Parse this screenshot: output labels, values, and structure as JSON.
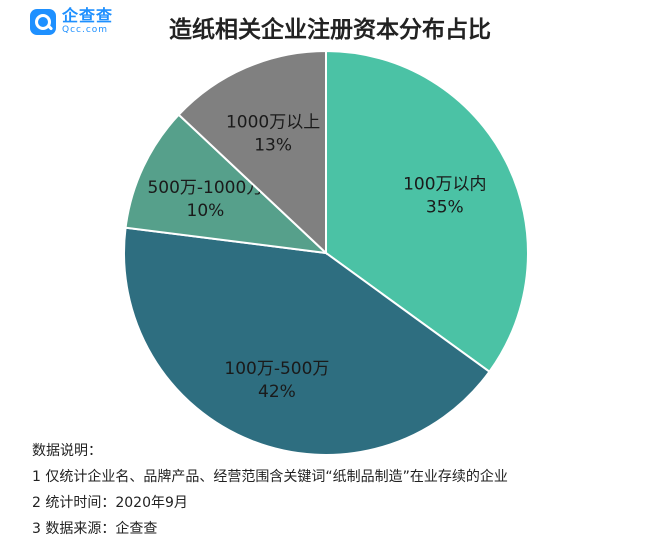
{
  "brand": {
    "name_cn": "企查查",
    "name_en": "Qcc.com"
  },
  "chart_data": {
    "type": "pie",
    "title": "造纸相关企业注册资本分布占比",
    "slices": [
      {
        "label": "100万以内",
        "value": 35,
        "value_label": "35%",
        "color": "#4bc2a5"
      },
      {
        "label": "100万-500万",
        "value": 42,
        "value_label": "42%",
        "color": "#2e6e80"
      },
      {
        "label": "500万-1000万",
        "value": 10,
        "value_label": "10%",
        "color": "#56a08b"
      },
      {
        "label": "1000万以上",
        "value": 13,
        "value_label": "13%",
        "color": "#808080"
      }
    ]
  },
  "notes": {
    "heading": "数据说明：",
    "lines": [
      "1 仅统计企业名、品牌产品、经营范围含关键词“纸制品制造”在业存续的企业",
      "2 统计时间：2020年9月",
      "3 数据来源：企查查"
    ]
  }
}
